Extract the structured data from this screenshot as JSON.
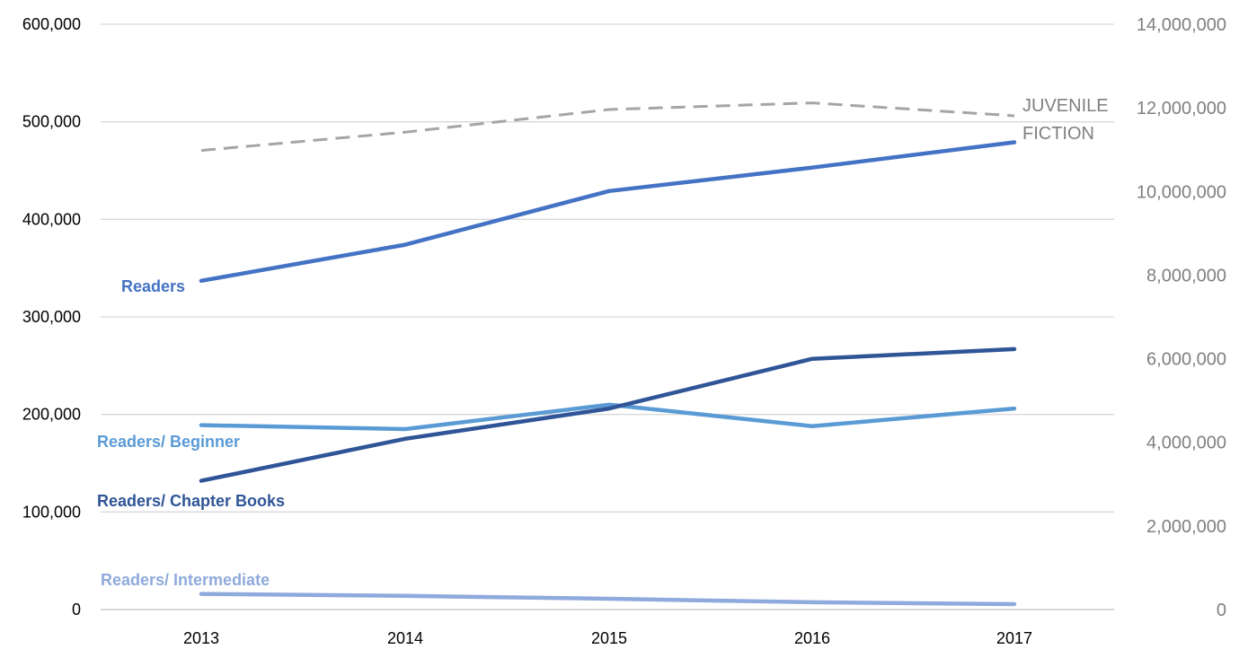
{
  "chart_data": {
    "type": "line",
    "x": [
      "2013",
      "2014",
      "2015",
      "2016",
      "2017"
    ],
    "y_left": {
      "ticks": [
        "0",
        "100,000",
        "200,000",
        "300,000",
        "400,000",
        "500,000",
        "600,000"
      ],
      "tick_values": [
        0,
        100000,
        200000,
        300000,
        400000,
        500000,
        600000
      ],
      "range": [
        0,
        600000
      ]
    },
    "y_right": {
      "ticks": [
        "0",
        "2,000,000",
        "4,000,000",
        "6,000,000",
        "8,000,000",
        "10,000,000",
        "12,000,000",
        "14,000,000"
      ],
      "tick_values": [
        0,
        2000000,
        4000000,
        6000000,
        8000000,
        10000000,
        12000000,
        14000000
      ],
      "range": [
        0,
        14000000
      ]
    },
    "grid": "horizontal",
    "legend": "inline labels",
    "series": [
      {
        "name": "Readers",
        "axis": "left",
        "color": "#4472c4",
        "dashed": false,
        "values": [
          337000,
          374000,
          429000,
          453000,
          479000
        ]
      },
      {
        "name": "Readers/ Beginner",
        "axis": "left",
        "color": "#5b9bd5",
        "dashed": false,
        "values": [
          189000,
          185000,
          210000,
          188000,
          206000
        ]
      },
      {
        "name": "Readers/ Chapter Books",
        "axis": "left",
        "color": "#2f5597",
        "dashed": false,
        "values": [
          132000,
          175000,
          206000,
          257000,
          267000
        ]
      },
      {
        "name": "Readers/ Intermediate",
        "axis": "left",
        "color": "#8faadc",
        "dashed": false,
        "values": [
          16000,
          14000,
          11000,
          7500,
          5500
        ]
      },
      {
        "name_lines": [
          "JUVENILE",
          "FICTION"
        ],
        "axis": "right",
        "color": "#a5a5a5",
        "dashed": true,
        "values": [
          10980000,
          11420000,
          11960000,
          12120000,
          11810000
        ]
      }
    ]
  }
}
